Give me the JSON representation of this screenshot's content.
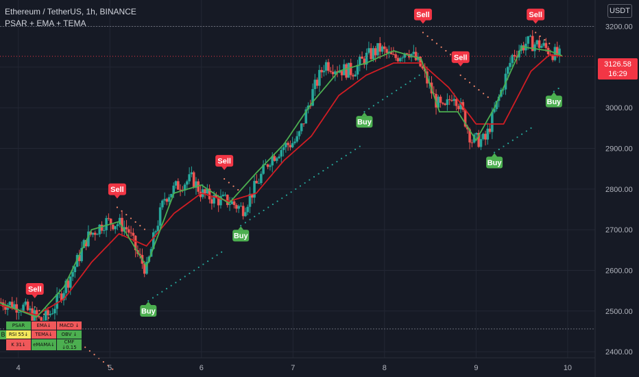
{
  "header": {
    "title": "Ethereum / TetherUS, 1h, BINANCE",
    "indicators": "PSAR + EMA + TEMA"
  },
  "currency": "USDT",
  "last_price": {
    "value": "3126.58",
    "countdown": "16:29"
  },
  "colors": {
    "background": "#161a25",
    "up": "#26a69a",
    "down": "#ef5350",
    "ema": "#d11d24",
    "tema": "#4caf50",
    "psar_up": "#26a69a",
    "psar_down": "#f7886b",
    "sell": "#f23645",
    "buy": "#4caf50"
  },
  "indicator_table": {
    "row1": [
      "PSAR",
      "EMA↓",
      "MACD ↓"
    ],
    "row2": [
      "RSI 55↓",
      "TEMA↓",
      "OBV ↓"
    ],
    "row3": [
      "K 31↓",
      "eMAMA↓",
      "CMF ↓0.15"
    ],
    "left_marker": "B"
  },
  "chart_data": {
    "type": "candlestick",
    "title": "Ethereum / TetherUS, 1h, BINANCE",
    "y_axis": {
      "ticks": [
        2400,
        2500,
        2600,
        2700,
        2800,
        2900,
        3000,
        3100,
        3200
      ],
      "tick_labels": [
        "2400.00",
        "2500.00",
        "2600.00",
        "2700.00",
        "2800.00",
        "2900.00",
        "3000.00",
        "3100.00",
        "3200.00"
      ],
      "range": [
        2385,
        3265
      ]
    },
    "x_axis": {
      "tick_labels": [
        "4",
        "5",
        "6",
        "7",
        "8",
        "9",
        "10"
      ],
      "ticks": [
        4,
        5,
        6,
        7,
        8,
        9,
        10
      ],
      "range": [
        3.8,
        10.3
      ]
    },
    "reference_lines": [
      3200,
      2456
    ],
    "ohlc_keypoints": [
      [
        3.8,
        2522
      ],
      [
        4.05,
        2510
      ],
      [
        4.25,
        2475
      ],
      [
        4.35,
        2495
      ],
      [
        4.45,
        2535
      ],
      [
        4.6,
        2600
      ],
      [
        4.75,
        2680
      ],
      [
        4.95,
        2720
      ],
      [
        5.1,
        2715
      ],
      [
        5.2,
        2700
      ],
      [
        5.3,
        2640
      ],
      [
        5.4,
        2600
      ],
      [
        5.5,
        2700
      ],
      [
        5.6,
        2780
      ],
      [
        5.75,
        2810
      ],
      [
        5.9,
        2825
      ],
      [
        6.0,
        2790
      ],
      [
        6.15,
        2775
      ],
      [
        6.3,
        2770
      ],
      [
        6.45,
        2750
      ],
      [
        6.6,
        2810
      ],
      [
        6.75,
        2875
      ],
      [
        6.9,
        2905
      ],
      [
        7.05,
        2920
      ],
      [
        7.2,
        3030
      ],
      [
        7.35,
        3110
      ],
      [
        7.5,
        3095
      ],
      [
        7.65,
        3090
      ],
      [
        7.8,
        3125
      ],
      [
        7.95,
        3145
      ],
      [
        8.1,
        3120
      ],
      [
        8.25,
        3145
      ],
      [
        8.4,
        3100
      ],
      [
        8.55,
        3020
      ],
      [
        8.65,
        2990
      ],
      [
        8.75,
        3040
      ],
      [
        8.85,
        2990
      ],
      [
        8.95,
        2920
      ],
      [
        9.1,
        2920
      ],
      [
        9.25,
        3025
      ],
      [
        9.4,
        3130
      ],
      [
        9.55,
        3160
      ],
      [
        9.7,
        3155
      ],
      [
        9.8,
        3140
      ],
      [
        9.9,
        3127
      ]
    ],
    "series": [
      {
        "name": "EMA",
        "points": [
          [
            3.8,
            2515
          ],
          [
            4.2,
            2490
          ],
          [
            4.5,
            2530
          ],
          [
            4.8,
            2620
          ],
          [
            5.1,
            2690
          ],
          [
            5.4,
            2660
          ],
          [
            5.7,
            2740
          ],
          [
            6.0,
            2790
          ],
          [
            6.3,
            2770
          ],
          [
            6.6,
            2790
          ],
          [
            6.9,
            2870
          ],
          [
            7.2,
            2930
          ],
          [
            7.5,
            3030
          ],
          [
            7.8,
            3080
          ],
          [
            8.1,
            3110
          ],
          [
            8.4,
            3110
          ],
          [
            8.7,
            3050
          ],
          [
            9.0,
            2960
          ],
          [
            9.3,
            2960
          ],
          [
            9.6,
            3090
          ],
          [
            9.8,
            3130
          ],
          [
            9.95,
            3127
          ]
        ]
      },
      {
        "name": "TEMA",
        "points": [
          [
            3.8,
            2520
          ],
          [
            4.2,
            2485
          ],
          [
            4.5,
            2560
          ],
          [
            4.8,
            2700
          ],
          [
            5.1,
            2720
          ],
          [
            5.4,
            2610
          ],
          [
            5.7,
            2790
          ],
          [
            6.0,
            2810
          ],
          [
            6.3,
            2765
          ],
          [
            6.6,
            2840
          ],
          [
            6.9,
            2910
          ],
          [
            7.2,
            3010
          ],
          [
            7.5,
            3090
          ],
          [
            7.8,
            3110
          ],
          [
            8.1,
            3140
          ],
          [
            8.4,
            3120
          ],
          [
            8.6,
            2990
          ],
          [
            8.8,
            2990
          ],
          [
            9.0,
            2920
          ],
          [
            9.2,
            3000
          ],
          [
            9.5,
            3150
          ],
          [
            9.8,
            3140
          ],
          [
            9.95,
            3127
          ]
        ]
      }
    ],
    "signals": [
      {
        "type": "Sell",
        "x": 4.18,
        "y": 2530
      },
      {
        "type": "Buy",
        "x": 5.42,
        "y": 2525
      },
      {
        "type": "Sell",
        "x": 5.08,
        "y": 2775
      },
      {
        "type": "Buy",
        "x": 6.43,
        "y": 2710
      },
      {
        "type": "Sell",
        "x": 6.25,
        "y": 2845
      },
      {
        "type": "Buy",
        "x": 7.78,
        "y": 2990
      },
      {
        "type": "Sell",
        "x": 8.42,
        "y": 3205
      },
      {
        "type": "Sell",
        "x": 8.83,
        "y": 3100
      },
      {
        "type": "Buy",
        "x": 9.2,
        "y": 2890
      },
      {
        "type": "Sell",
        "x": 9.65,
        "y": 3205
      },
      {
        "type": "Buy",
        "x": 9.85,
        "y": 3040
      }
    ]
  }
}
